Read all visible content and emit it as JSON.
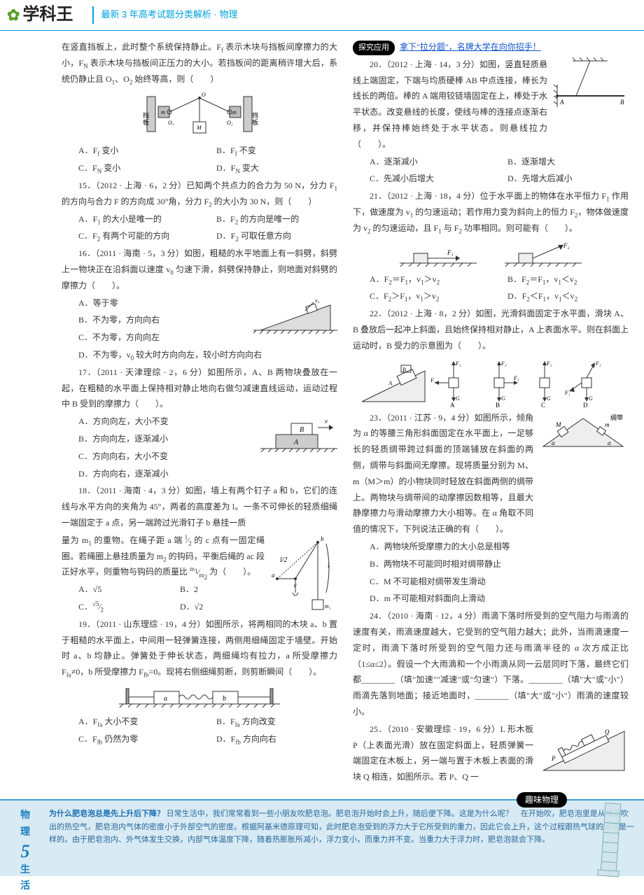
{
  "header": {
    "logo_text": "学科王",
    "subtitle": "最新 3 年高考试题分类解析 · 物理"
  },
  "left": {
    "intro": "在竖直挡板上，此时整个系统保持静止。F<sub>f</sub> 表示木块与挡板间摩擦力的大小，F<sub>N</sub> 表示木块与挡板间正压力的大小。若挡板间的距离稍许增大后，系统仍静止且 O<sub>1</sub>、O<sub>2</sub> 始终等高，则（　　）",
    "q14_optA": "A．F<sub>f</sub> 变小",
    "q14_optB": "B．F<sub>f</sub> 不变",
    "q14_optC": "C．F<sub>N</sub> 变小",
    "q14_optD": "D．F<sub>N</sub> 变大",
    "q15": "15．（2012 · 上海 · 6，2 分）已知两个共点力的合力为 50 N，分力 F<sub>1</sub> 的方向与合力 F 的方向成 30°角，分力 F<sub>2</sub> 的大小为 30 N，则（　　）",
    "q15_optA": "A．F<sub>1</sub> 的大小是唯一的",
    "q15_optB": "B．F<sub>2</sub> 的方向是唯一的",
    "q15_optC": "C．F<sub>2</sub> 有两个可能的方向",
    "q15_optD": "D．F<sub>2</sub> 可取任意方向",
    "q16": "16．（2011 · 海南 · 5，3 分）如图，粗糙的水平地面上有一斜劈，斜劈上一物块正在沿斜面以速度 v<sub>0</sub> 匀速下滑，斜劈保持静止，则地面对斜劈的摩擦力（　　）。",
    "q16_optA": "A．等于零",
    "q16_optB": "B．不为零，方向向右",
    "q16_optC": "C．不为零，方向向左",
    "q16_optD": "D．不为零，v<sub>0</sub> 较大时方向向左，较小时方向向右",
    "q17": "17．（2011 · 天津理综 · 2，6 分）如图所示，A、B 两物块叠放在一起，在粗糙的水平面上保持相对静止地向右做匀减速直线运动，运动过程中 B 受到的摩擦力（　　）。",
    "q17_optA": "A．方向向左，大小不变",
    "q17_optB": "B．方向向左，逐渐减小",
    "q17_optC": "C．方向向右，大小不变",
    "q17_optD": "D．方向向右，逐渐减小",
    "q18": "18．（2011 · 海南 · 4，3 分）如图，墙上有两个钉子 a 和 b，它们的连线与水平方向的夹角为 45°，两者的高度差为 l。一条不可伸长的轻质细绳一端固定于 a 点，另一端跨过光滑钉子 b 悬挂一质",
    "q18b": "量为 m<sub>1</sub> 的重物。在绳子距 a 端 <sup>l</sup>⁄<sub>2</sub> 的 c 点有一固定绳圈。若绳圈上悬挂质量为 m<sub>2</sub> 的钩码，平衡后绳的 ac 段正好水平，则重物与钩码的质量比 <sup>m<sub>1</sub></sup>⁄<sub>m<sub>2</sub></sub> 为（　　）。",
    "q18_optA": "A．√5",
    "q18_optB": "B．2",
    "q18_optC": "C．<sup>√5</sup>⁄<sub>2</sub>",
    "q18_optD": "D．√2",
    "q19": "19．（2011 · 山东理综 · 19，4 分）如图所示，将两相同的木块 a、b 置于粗糙的水平面上，中间用一轻弹簧连接，两侧用细绳固定于墙壁。开始时 a、b 均静止。弹簧处于伸长状态，两细绳均有拉力，a 所受摩擦力 F<sub>fa</sub>≠0，b 所受摩擦力 F<sub>fb</sub>=0。现将右侧细绳剪断，则剪断瞬间（　　）。",
    "q19_optA": "A．F<sub>fa</sub> 大小不变",
    "q19_optB": "B．F<sub>fa</sub> 方向改变",
    "q19_optC": "C．F<sub>fb</sub> 仍然为零",
    "q19_optD": "D．F<sub>fb</sub> 方向向右"
  },
  "right": {
    "tag": "探究应用",
    "link": "拿下\"拉分题\"，名牌大学在向你招手！",
    "q20": "20．（2012 · 上海 · 14，3 分）如图，竖直轻质悬线上端固定，下端与均质硬棒 AB 中点连接，棒长为线长的两倍。棒的 A 端用铰链墙固定在上，棒处于水平状态。改变悬线的长度，使线与棒的连接点逐渐右移，并保持棒始终处于水平状态。则悬线拉力（　　）。",
    "q20_optA": "A．逐渐减小",
    "q20_optB": "B．逐渐增大",
    "q20_optC": "C．先减小后增大",
    "q20_optD": "D．先增大后减小",
    "q21": "21．（2012 · 上海 · 18，4 分）位于水平面上的物体在水平恒力 F<sub>1</sub> 作用下，做速度为 v<sub>1</sub> 的匀速运动；若作用力变为斜向上的恒力 F<sub>2</sub>，物体做速度为 v<sub>2</sub> 的匀速运动，且 F<sub>1</sub> 与 F<sub>2</sub> 功率相同。则可能有（　　）。",
    "q21_optA": "A．F<sub>2</sub>＝F<sub>1</sub>，v<sub>1</sub>＞v<sub>2</sub>",
    "q21_optB": "B．F<sub>2</sub>＝F<sub>1</sub>，v<sub>1</sub>＜v<sub>2</sub>",
    "q21_optC": "C．F<sub>2</sub>＞F<sub>1</sub>，v<sub>1</sub>＞v<sub>2</sub>",
    "q21_optD": "D．F<sub>2</sub>＜F<sub>1</sub>，v<sub>1</sub>＜v<sub>2</sub>",
    "q22": "22．（2012 · 上海 · 8，2 分）如图，光滑斜面固定于水平面，滑块 A、B 叠放后一起冲上斜面，且始终保持相对静止，A 上表面水平。则在斜面上运动时，B 受力的示意图为（　　）。",
    "q23": "23．（2011 · 江苏 · 9，4 分）如图所示，倾角为 α 的等腰三角形斜面固定在水平面上，一足够长的轻质绸带跨过斜面的顶端铺放在斜面的两侧，绸带与斜面间无摩擦。现将质量分别为 M、m（M＞m）的小物块同时轻放在斜面两侧的绸带上。两物块与绸带间的动摩擦因数相等，且最大静摩擦力与滑动摩擦力大小相等。在 α 角取不同值的情况下，下列说法正确的有（　　）。",
    "q23_optA": "A．两物块所受摩擦力的大小总是相等",
    "q23_optB": "B．两物块不可能同时相对绸带静止",
    "q23_optC": "C．M 不可能相对绸带发生滑动",
    "q23_optD": "D．m 不可能相对斜面向上滑动",
    "q24": "24．（2010 · 海南 · 12，4 分）雨滴下落时所受到的空气阻力与雨滴的速度有关，雨滴速度越大，它受到的空气阻力越大；此外，当雨滴速度一定时，雨滴下落时所受到的空气阻力还与雨滴半径的 α 次方成正比（1≤α≤2）。假设一个大雨滴和一个小雨滴从同一云层同时下落，最终它们都________（填\"加速\"\"减速\"或\"匀速\"）下落。________（填\"大\"或\"小\"）雨滴先落到地面；接近地面时，________（填\"大\"或\"小\"）雨滴的速度较小。",
    "q25": "25．（2010 · 安徽理综 · 19，6 分）L 形木板 P（上表面光滑）放在固定斜面上，轻质弹簧一端固定在木板上，另一端与置于木板上表面的滑块 Q 相连，如图所示。若 P、Q 一"
  },
  "footer": {
    "side1": "物",
    "side2": "理",
    "num": "5",
    "side3": "生",
    "side4": "活",
    "badge": "趣味物理",
    "title": "为什么肥皂泡总是先上升后下降？",
    "body": "日常生活中，我们常常看到一些小朋友吹肥皂泡。肥皂泡开始时会上升，随后便下降。这是为什么呢？　在开始吹，肥皂泡里是从嘴里吹出的热空气，肥皂泡内气体的密度小于外部空气的密度。根据阿基米德原理可知，此时肥皂泡受到的浮力大于它所受到的重力，因此它会上升，这个过程跟热气球的原理是一样的。由于肥皂泡内、外气体发生交换，内部气体温度下降，随着热膨胀所减小，浮力变小，而重力并不变。当重力大于浮力时，肥皂泡就会下降。"
  }
}
